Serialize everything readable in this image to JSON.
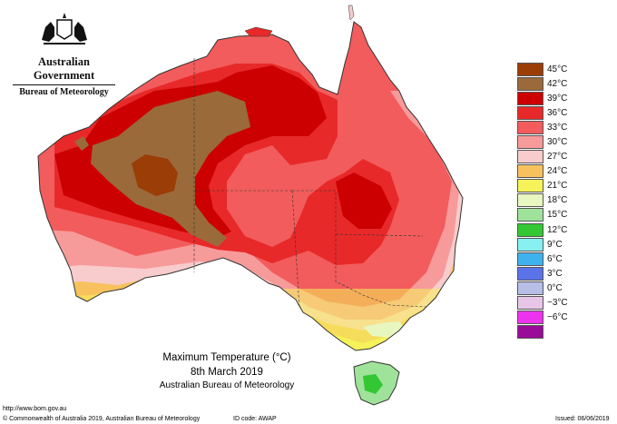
{
  "header": {
    "government": "Australian Government",
    "bureau": "Bureau of Meteorology"
  },
  "legend": {
    "items": [
      {
        "label": "45°C",
        "color": "#9b3d06"
      },
      {
        "label": "42°C",
        "color": "#9a6a3a"
      },
      {
        "label": "39°C",
        "color": "#cc0000"
      },
      {
        "label": "36°C",
        "color": "#e82929"
      },
      {
        "label": "33°C",
        "color": "#f25c5c"
      },
      {
        "label": "30°C",
        "color": "#f79a9a"
      },
      {
        "label": "27°C",
        "color": "#f8cccc"
      },
      {
        "label": "24°C",
        "color": "#f7c25e"
      },
      {
        "label": "21°C",
        "color": "#f5f25a"
      },
      {
        "label": "18°C",
        "color": "#e8f7c0"
      },
      {
        "label": "15°C",
        "color": "#9fe39a"
      },
      {
        "label": "12°C",
        "color": "#33c833"
      },
      {
        "label": "9°C",
        "color": "#88f0f0"
      },
      {
        "label": "6°C",
        "color": "#3fb2ee"
      },
      {
        "label": "3°C",
        "color": "#5a73e8"
      },
      {
        "label": "0°C",
        "color": "#b7bfe6"
      },
      {
        "label": "−3°C",
        "color": "#e8c6e8"
      },
      {
        "label": "−6°C",
        "color": "#ee33ee"
      },
      {
        "label": "",
        "color": "#9a0b9a"
      }
    ]
  },
  "caption": {
    "title": "Maximum Temperature (°C)",
    "date": "8th March 2019",
    "source": "Australian Bureau of Meteorology"
  },
  "footer": {
    "url": "http://www.bom.gov.au",
    "copyright": "© Commonwealth of Australia 2019, Australian Bureau of Meteorology",
    "id_code": "ID code: AWAP",
    "issued": "Issued: 06/06/2019"
  }
}
